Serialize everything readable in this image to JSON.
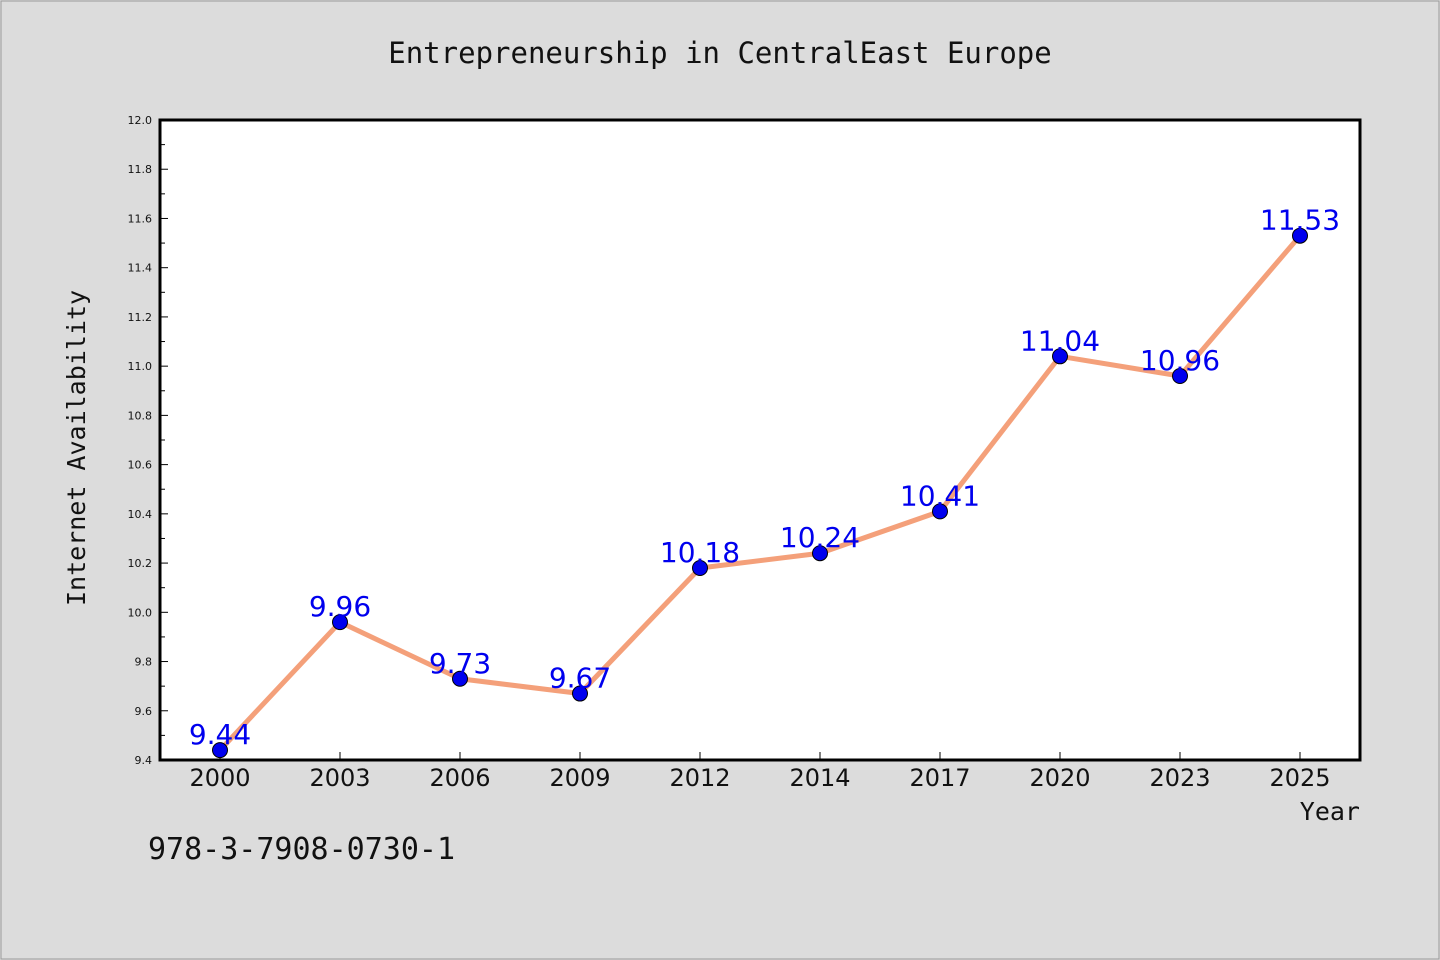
{
  "footer": {
    "code": "978-3-7908-0730-1"
  },
  "chart_data": {
    "type": "line",
    "title": "Entrepreneurship in CentralEast Europe",
    "xlabel": "Year",
    "ylabel": "Internet Availability",
    "categories": [
      "2000",
      "2003",
      "2006",
      "2009",
      "2012",
      "2014",
      "2017",
      "2020",
      "2023",
      "2025"
    ],
    "values": [
      9.44,
      9.96,
      9.73,
      9.67,
      10.18,
      10.24,
      10.41,
      11.04,
      10.96,
      11.53
    ],
    "value_labels": [
      "9.44",
      "9.96",
      "9.73",
      "9.67",
      "10.18",
      "10.24",
      "10.41",
      "11.04",
      "10.96",
      "11.53"
    ],
    "ylim": [
      9.4,
      12.0
    ],
    "yticks": [
      "9.4",
      "9.6",
      "9.8",
      "10.0",
      "10.2",
      "10.4",
      "10.6",
      "10.8",
      "11.0",
      "11.2",
      "11.4",
      "11.6",
      "11.8",
      "12.0"
    ],
    "grid": false,
    "line_color": "#f4a07a",
    "marker_color": "#0000ee",
    "label_color": "#0000ee",
    "background": "#dcdcdc",
    "plot_background": "#ffffff"
  }
}
